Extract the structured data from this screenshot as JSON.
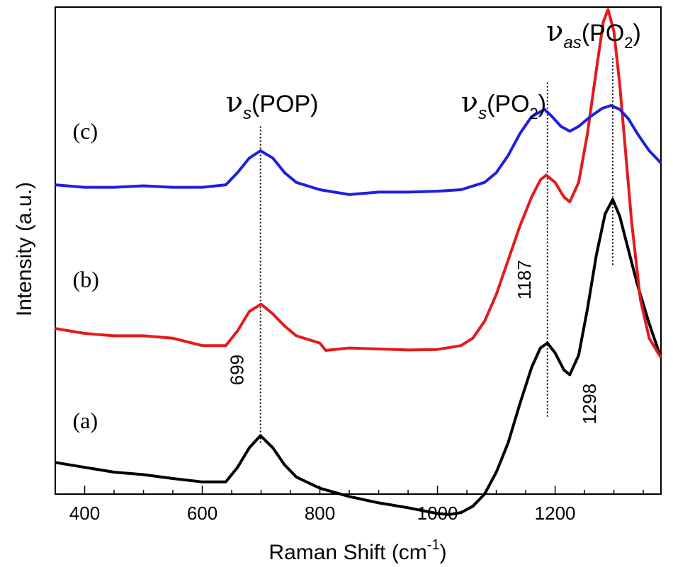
{
  "chart_data": {
    "type": "line",
    "xlabel": "Raman Shift (cm",
    "xlabel_sup": "-1",
    "xlabel_end": ")",
    "ylabel": "Intensity (a.u.)",
    "xlim": [
      350,
      1380
    ],
    "ylim": [
      0,
      10
    ],
    "x_ticks": [
      "400",
      "600",
      "800",
      "1000",
      "1200"
    ],
    "x_tick_values": [
      400,
      600,
      800,
      1000,
      1200
    ],
    "minor_tick_step": 50,
    "series": [
      {
        "name": "(a)",
        "color": "#000000",
        "x": [
          350,
          400,
          450,
          500,
          550,
          600,
          640,
          660,
          680,
          699,
          720,
          740,
          760,
          800,
          850,
          900,
          950,
          1000,
          1020,
          1040,
          1060,
          1080,
          1100,
          1120,
          1140,
          1160,
          1175,
          1187,
          1200,
          1215,
          1225,
          1240,
          1255,
          1270,
          1285,
          1298,
          1310,
          1325,
          1340,
          1360,
          1380
        ],
        "y": [
          0.65,
          0.55,
          0.45,
          0.4,
          0.32,
          0.25,
          0.25,
          0.55,
          0.95,
          1.2,
          0.95,
          0.6,
          0.35,
          0.12,
          -0.05,
          -0.18,
          -0.28,
          -0.4,
          -0.42,
          -0.38,
          -0.25,
          0.0,
          0.45,
          1.05,
          1.85,
          2.6,
          3.0,
          3.1,
          2.9,
          2.55,
          2.45,
          2.85,
          3.8,
          4.9,
          5.75,
          6.05,
          5.7,
          5.0,
          4.3,
          3.5,
          2.8
        ]
      },
      {
        "name": "(b)",
        "color": "#e41a1c",
        "x": [
          350,
          400,
          450,
          500,
          550,
          600,
          640,
          660,
          680,
          700,
          720,
          740,
          760,
          800,
          810,
          850,
          900,
          950,
          1000,
          1040,
          1060,
          1080,
          1100,
          1120,
          1140,
          1160,
          1175,
          1185,
          1200,
          1215,
          1225,
          1240,
          1255,
          1270,
          1282,
          1290,
          1300,
          1310,
          1320,
          1330,
          1345,
          1360,
          1380
        ],
        "y": [
          3.4,
          3.3,
          3.25,
          3.25,
          3.2,
          3.05,
          3.05,
          3.35,
          3.75,
          3.9,
          3.7,
          3.45,
          3.25,
          3.1,
          2.95,
          3.0,
          2.98,
          2.96,
          2.97,
          3.05,
          3.2,
          3.55,
          4.1,
          4.8,
          5.5,
          6.1,
          6.45,
          6.55,
          6.4,
          6.1,
          6.0,
          6.4,
          7.4,
          8.7,
          9.7,
          9.95,
          9.5,
          8.4,
          7.0,
          5.6,
          4.0,
          3.2,
          2.8
        ]
      },
      {
        "name": "(c)",
        "color": "#1f1fe0",
        "x": [
          350,
          400,
          450,
          500,
          550,
          600,
          640,
          660,
          680,
          699,
          720,
          740,
          760,
          800,
          850,
          900,
          950,
          1000,
          1040,
          1080,
          1100,
          1120,
          1140,
          1160,
          1175,
          1182,
          1195,
          1210,
          1225,
          1240,
          1260,
          1280,
          1295,
          1310,
          1325,
          1340,
          1360,
          1380
        ],
        "y": [
          6.35,
          6.3,
          6.3,
          6.33,
          6.3,
          6.3,
          6.35,
          6.6,
          6.9,
          7.05,
          6.9,
          6.6,
          6.4,
          6.25,
          6.15,
          6.2,
          6.2,
          6.22,
          6.25,
          6.4,
          6.6,
          6.95,
          7.4,
          7.75,
          7.85,
          7.9,
          7.75,
          7.55,
          7.45,
          7.55,
          7.75,
          7.92,
          7.98,
          7.9,
          7.7,
          7.4,
          7.05,
          6.8
        ]
      }
    ],
    "peak_lines": [
      {
        "x": 699,
        "y_top": 7.55,
        "y_bottom": 1.05,
        "value_label": "699",
        "label_y": 2.55
      },
      {
        "x": 1187,
        "y_top": 8.45,
        "y_bottom": 1.55,
        "value_label": "1187",
        "label_y": 4.4
      },
      {
        "x": 1298,
        "y_top": 8.95,
        "y_bottom": 4.7,
        "value_label": "1298",
        "label_y": 1.85
      }
    ],
    "mode_labels": [
      {
        "nu": "ν",
        "sub": "s",
        "text": "(POP)",
        "x": 640,
        "y": 7.85
      },
      {
        "nu": "ν",
        "sub": "s",
        "text": "(PO",
        "sub2": "2",
        "end": ")",
        "x": 1040,
        "y": 7.85
      },
      {
        "nu": "ν",
        "sub": "as",
        "text": "(PO",
        "sub2": "2",
        "end": ")",
        "x": 1185,
        "y": 9.3
      }
    ],
    "series_tags": [
      {
        "text": "(c)",
        "x": 370,
        "y": 7.3
      },
      {
        "text": "(b)",
        "x": 370,
        "y": 4.25
      },
      {
        "text": "(a)",
        "x": 370,
        "y": 1.35
      }
    ]
  }
}
